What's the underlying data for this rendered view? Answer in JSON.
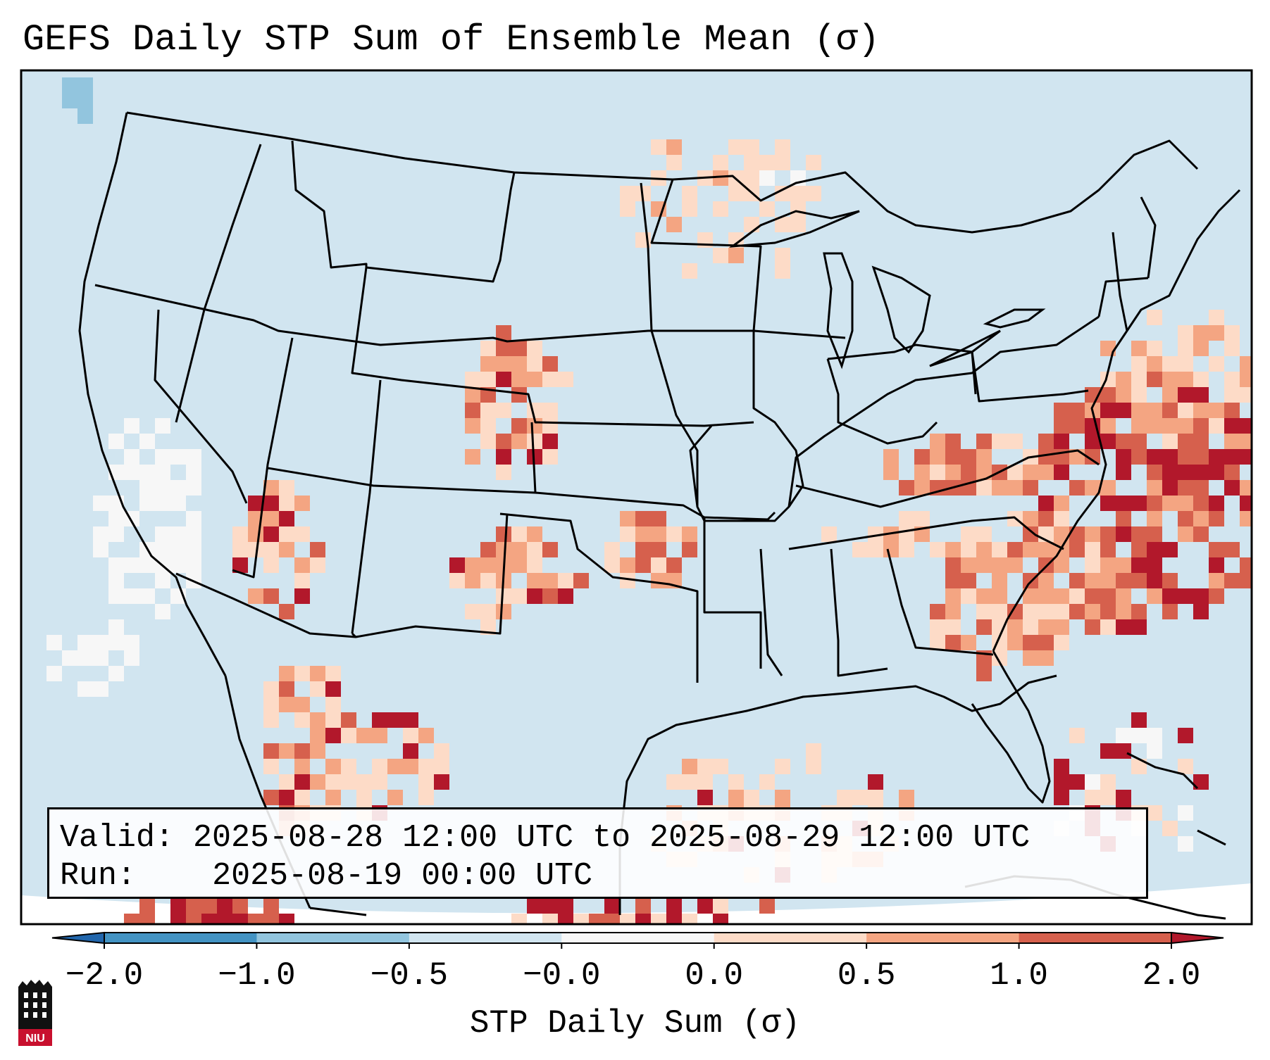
{
  "title": "GEFS Daily STP Sum of Ensemble Mean (σ)",
  "info_box": {
    "valid_label": "Valid:",
    "valid_text": "2025-08-28 12:00 UTC to 2025-08-29 12:00 UTC",
    "run_label": "Run:",
    "run_text": "2025-08-19 00:00 UTC"
  },
  "colorbar": {
    "label": "STP Daily Sum (σ)",
    "ticks": [
      "−2.0",
      "−1.0",
      "−0.5",
      "−0.0",
      "0.0",
      "0.5",
      "1.0",
      "2.0"
    ],
    "bin_colors": [
      "#4393c3",
      "#92c5de",
      "#d1e5f0",
      "#f7f7f7",
      "#fddbc7",
      "#f4a582",
      "#d6604d"
    ],
    "under_color": "#2166ac",
    "over_color": "#b2182b"
  },
  "map": {
    "background_color": "#d1e5f0",
    "projection": "Lambert Conformal, CONUS",
    "anomaly_regions": [
      {
        "region": "Western Atlantic off the Carolinas",
        "sigma": 2.0
      },
      {
        "region": "Kentucky / Tennessee / Virginia",
        "sigma": 1.0
      },
      {
        "region": "Eastern Colorado / Eastern New Mexico",
        "sigma": 1.0
      },
      {
        "region": "Oklahoma",
        "sigma": 1.0
      },
      {
        "region": "Arizona",
        "sigma": 1.0
      },
      {
        "region": "Northern California coast offshore",
        "sigma": -0.0
      }
    ]
  },
  "logo": {
    "text": "NIU"
  }
}
